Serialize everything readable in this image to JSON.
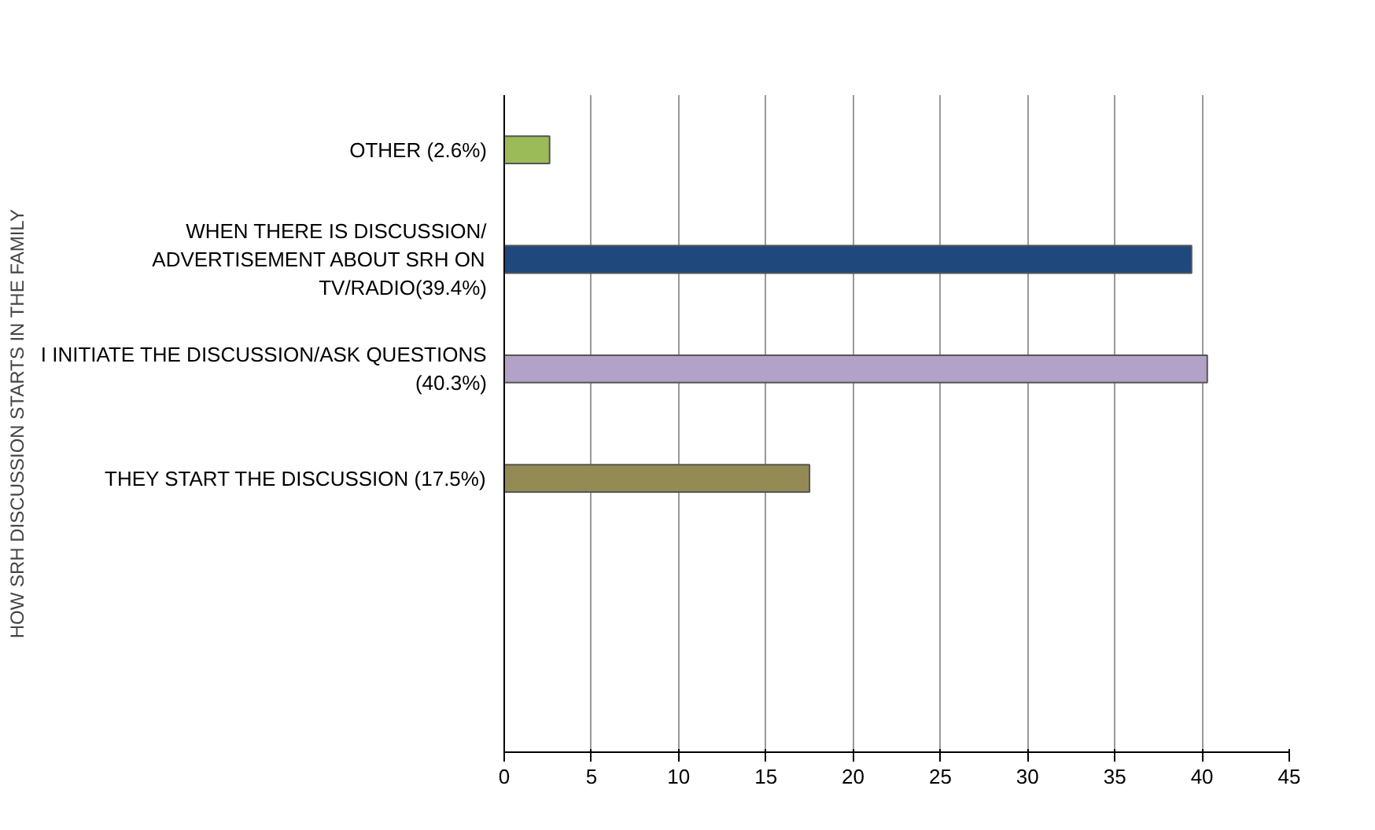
{
  "chart_data": {
    "type": "bar",
    "orientation": "horizontal",
    "ylabel": "HOW SRH DISCUSSION STARTS IN THE FAMILY",
    "categories": [
      "OTHER (2.6%)",
      "WHEN THERE IS DISCUSSION/ ADVERTISEMENT ABOUT SRH ON TV/RADIO(39.4%)",
      "I INITIATE THE DISCUSSION/ASK QUESTIONS (40.3%)",
      "THEY START THE DISCUSSION (17.5%)",
      null,
      null
    ],
    "values": [
      2.6,
      39.4,
      40.3,
      17.5,
      null,
      null
    ],
    "colors": [
      "#9bbb59",
      "#1f497d",
      "#b3a2c7",
      "#948a54",
      null,
      null
    ],
    "xlim": [
      0,
      45
    ],
    "xticks": [
      0,
      5,
      10,
      15,
      20,
      25,
      30,
      35,
      40,
      45
    ],
    "grid": "x"
  }
}
